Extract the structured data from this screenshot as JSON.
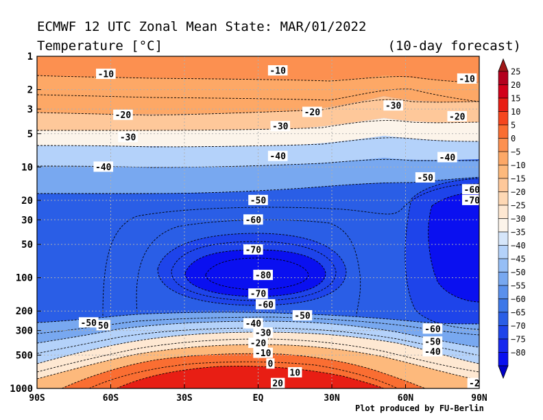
{
  "header": {
    "title": "ECMWF 12 UTC Zonal Mean State: MAR/01/2022",
    "subtitle": "Temperature [°C]",
    "forecast": "(10-day forecast)"
  },
  "footer": {
    "credit": "Plot produced by FU-Berlin"
  },
  "chart_data": {
    "type": "heatmap",
    "x": {
      "scale": "linear",
      "range": [
        -90,
        90
      ],
      "ticks": [
        -90,
        -60,
        -30,
        0,
        30,
        60,
        90
      ],
      "tick_labels": [
        "90S",
        "60S",
        "30S",
        "EQ",
        "30N",
        "60N",
        "90N"
      ]
    },
    "y": {
      "scale": "log",
      "inverted": true,
      "range": [
        1,
        1000
      ],
      "ticks": [
        1,
        2,
        3,
        5,
        10,
        20,
        30,
        50,
        100,
        200,
        300,
        500,
        1000
      ],
      "tick_labels": [
        "1",
        "2",
        "3",
        "5",
        "10",
        "20",
        "30",
        "50",
        "100",
        "200",
        "300",
        "500",
        "1000"
      ]
    },
    "grid": true,
    "colorbar": {
      "levels": [
        25,
        20,
        15,
        10,
        5,
        0,
        -5,
        -10,
        -15,
        -20,
        -25,
        -30,
        -35,
        -40,
        -45,
        -50,
        -55,
        -60,
        -65,
        -70,
        -75,
        -80
      ],
      "labels": [
        "25",
        "20",
        "15",
        "10",
        "5",
        "0",
        "−5",
        "−10",
        "−15",
        "−20",
        "−25",
        "−30",
        "−35",
        "−40",
        "−45",
        "−50",
        "−55",
        "−60",
        "−65",
        "−70",
        "−75",
        "−80"
      ],
      "colors": [
        "#b4001e",
        "#d2001a",
        "#e81e14",
        "#f5461e",
        "#fa6e32",
        "#fc9050",
        "#fda866",
        "#fdb97c",
        "#fec89a",
        "#fed8b4",
        "#fee8d2",
        "#fcf4ea",
        "#d6e6fa",
        "#b4d2fa",
        "#96bef5",
        "#78a8f0",
        "#5a90ec",
        "#3e78e8",
        "#2a5ee6",
        "#1e44ea",
        "#1628ee",
        "#0a10f0"
      ],
      "top_arrow_color": "#a01818",
      "bottom_arrow_color": "#0000c8"
    },
    "contour_labels": [
      {
        "text": "-10",
        "lat": -62,
        "p": 1.45
      },
      {
        "text": "-10",
        "lat": 8,
        "p": 1.35
      },
      {
        "text": "-10",
        "lat": 85,
        "p": 1.6
      },
      {
        "text": "-20",
        "lat": -55,
        "p": 3.4
      },
      {
        "text": "-20",
        "lat": 22,
        "p": 3.2
      },
      {
        "text": "-20",
        "lat": 81,
        "p": 3.5
      },
      {
        "text": "-30",
        "lat": 55,
        "p": 2.8
      },
      {
        "text": "-30",
        "lat": 9,
        "p": 4.3
      },
      {
        "text": "-30",
        "lat": -53,
        "p": 5.4
      },
      {
        "text": "-40",
        "lat": -63,
        "p": 10
      },
      {
        "text": "-40",
        "lat": 8,
        "p": 8
      },
      {
        "text": "-40",
        "lat": 77,
        "p": 8.2
      },
      {
        "text": "-50",
        "lat": 0,
        "p": 20
      },
      {
        "text": "-50",
        "lat": 68,
        "p": 12.5
      },
      {
        "text": "-60",
        "lat": -2,
        "p": 30
      },
      {
        "text": "-60",
        "lat": 87,
        "p": 16
      },
      {
        "text": "-70",
        "lat": -2,
        "p": 56
      },
      {
        "text": "-70",
        "lat": 87,
        "p": 20
      },
      {
        "text": "-80",
        "lat": 2,
        "p": 95
      },
      {
        "text": "-70",
        "lat": 0,
        "p": 140
      },
      {
        "text": "-60",
        "lat": 3,
        "p": 175
      },
      {
        "text": "-50",
        "lat": 18,
        "p": 220
      },
      {
        "text": "-50",
        "lat": -69,
        "p": 255
      },
      {
        "text": "50",
        "lat": -63,
        "p": 270
      },
      {
        "text": "-40",
        "lat": -2,
        "p": 260
      },
      {
        "text": "-30",
        "lat": 2,
        "p": 315
      },
      {
        "text": "-20",
        "lat": 0,
        "p": 390
      },
      {
        "text": "-10",
        "lat": 2,
        "p": 480
      },
      {
        "text": "0",
        "lat": 5,
        "p": 600
      },
      {
        "text": "10",
        "lat": 15,
        "p": 720
      },
      {
        "text": "20",
        "lat": 8,
        "p": 900
      },
      {
        "text": "-60",
        "lat": 71,
        "p": 290
      },
      {
        "text": "-50",
        "lat": 71,
        "p": 380
      },
      {
        "text": "-40",
        "lat": 71,
        "p": 465
      },
      {
        "text": "-2",
        "lat": 88,
        "p": 900
      }
    ]
  }
}
